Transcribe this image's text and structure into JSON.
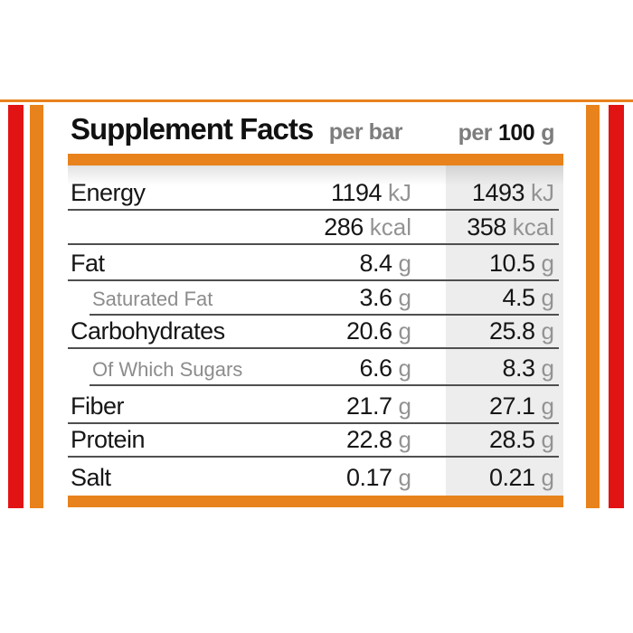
{
  "colors": {
    "orange": "#E8821C",
    "red": "#E21313",
    "shade": "#EDEDED",
    "separator": "#4F4F4F",
    "text": "#161616",
    "muted": "#8C8C8C"
  },
  "header": {
    "title": "Supplement Facts",
    "per_bar": "per bar",
    "per_100_prefix": "per",
    "per_100_amount": "100",
    "per_100_unit": "g"
  },
  "table": {
    "rows": [
      {
        "label": "Energy",
        "style": "main",
        "per_bar_value": "1194",
        "per_bar_unit": "kJ",
        "per_100_value": "1493",
        "per_100_unit": "kJ"
      },
      {
        "label": "",
        "style": "main",
        "per_bar_value": "286",
        "per_bar_unit": "kcal",
        "per_100_value": "358",
        "per_100_unit": "kcal"
      },
      {
        "label": "Fat",
        "style": "main",
        "per_bar_value": "8.4",
        "per_bar_unit": "g",
        "per_100_value": "10.5",
        "per_100_unit": "g"
      },
      {
        "label": "Saturated Fat",
        "style": "sub",
        "per_bar_value": "3.6",
        "per_bar_unit": "g",
        "per_100_value": "4.5",
        "per_100_unit": "g"
      },
      {
        "label": "Carbohydrates",
        "style": "main",
        "per_bar_value": "20.6",
        "per_bar_unit": "g",
        "per_100_value": "25.8",
        "per_100_unit": "g"
      },
      {
        "label": "Of Which Sugars",
        "style": "sub",
        "per_bar_value": "6.6",
        "per_bar_unit": "g",
        "per_100_value": "8.3",
        "per_100_unit": "g"
      },
      {
        "label": "Fiber",
        "style": "main",
        "per_bar_value": "21.7",
        "per_bar_unit": "g",
        "per_100_value": "27.1",
        "per_100_unit": "g"
      },
      {
        "label": "Protein",
        "style": "main",
        "per_bar_value": "22.8",
        "per_bar_unit": "g",
        "per_100_value": "28.5",
        "per_100_unit": "g"
      },
      {
        "label": "Salt",
        "style": "main",
        "per_bar_value": "0.17",
        "per_bar_unit": "g",
        "per_100_value": "0.21",
        "per_100_unit": "g"
      }
    ]
  }
}
